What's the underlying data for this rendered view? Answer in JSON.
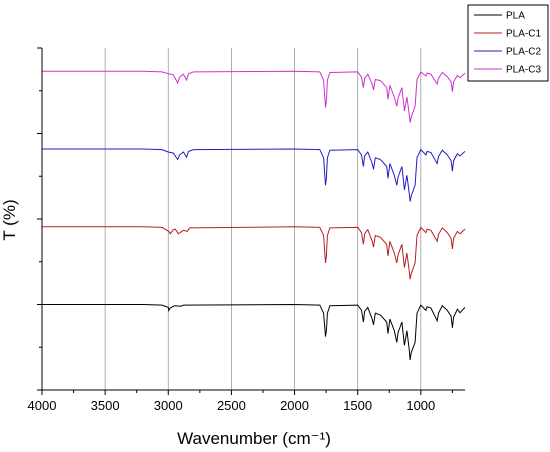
{
  "chart_data": {
    "type": "line",
    "title": "",
    "xlabel": "Wavenumber (cm⁻¹)",
    "ylabel": "T (%)",
    "xlim": [
      4000,
      650
    ],
    "x_reversed": true,
    "x_ticks": [
      "4000",
      "3500",
      "3000",
      "2500",
      "2000",
      "1500",
      "1000"
    ],
    "x_tick_values": [
      4000,
      3500,
      3000,
      2500,
      2000,
      1500,
      1000
    ],
    "ylim": [
      0,
      4.4
    ],
    "y_ticks_shown": false,
    "grid": "vertical",
    "legend_position": "top-right",
    "series": [
      {
        "name": "PLA",
        "color": "#000000",
        "offset": 0.35,
        "points": [
          [
            4000,
            1.0
          ],
          [
            3600,
            1.0
          ],
          [
            3200,
            1.0
          ],
          [
            3050,
            0.99
          ],
          [
            3000,
            0.95
          ],
          [
            2995,
            0.9
          ],
          [
            2985,
            0.94
          ],
          [
            2950,
            0.98
          ],
          [
            2900,
            0.97
          ],
          [
            2880,
            0.99
          ],
          [
            2000,
            1.0
          ],
          [
            1800,
            0.99
          ],
          [
            1770,
            0.85
          ],
          [
            1760,
            0.6
          ],
          [
            1755,
            0.45
          ],
          [
            1748,
            0.55
          ],
          [
            1740,
            0.85
          ],
          [
            1720,
            0.98
          ],
          [
            1500,
            0.99
          ],
          [
            1470,
            0.9
          ],
          [
            1455,
            0.7
          ],
          [
            1445,
            0.88
          ],
          [
            1420,
            0.95
          ],
          [
            1385,
            0.75
          ],
          [
            1375,
            0.65
          ],
          [
            1360,
            0.85
          ],
          [
            1320,
            0.82
          ],
          [
            1270,
            0.7
          ],
          [
            1260,
            0.5
          ],
          [
            1245,
            0.75
          ],
          [
            1210,
            0.55
          ],
          [
            1190,
            0.35
          ],
          [
            1180,
            0.52
          ],
          [
            1150,
            0.7
          ],
          [
            1130,
            0.3
          ],
          [
            1110,
            0.55
          ],
          [
            1090,
            0.2
          ],
          [
            1085,
            0.05
          ],
          [
            1075,
            0.18
          ],
          [
            1045,
            0.35
          ],
          [
            1030,
            0.85
          ],
          [
            1000,
            0.99
          ],
          [
            960,
            0.9
          ],
          [
            950,
            0.96
          ],
          [
            920,
            0.94
          ],
          [
            870,
            0.72
          ],
          [
            860,
            0.85
          ],
          [
            830,
            0.98
          ],
          [
            790,
            0.9
          ],
          [
            760,
            0.8
          ],
          [
            750,
            0.6
          ],
          [
            740,
            0.78
          ],
          [
            710,
            0.92
          ],
          [
            690,
            0.86
          ],
          [
            650,
            0.95
          ]
        ]
      },
      {
        "name": "PLA-C1",
        "color": "#b22222",
        "offset": 1.35,
        "points": [
          [
            4000,
            1.0
          ],
          [
            3600,
            1.0
          ],
          [
            3200,
            1.0
          ],
          [
            3050,
            0.99
          ],
          [
            2995,
            0.92
          ],
          [
            2985,
            0.88
          ],
          [
            2960,
            0.95
          ],
          [
            2945,
            0.96
          ],
          [
            2920,
            0.88
          ],
          [
            2880,
            0.94
          ],
          [
            2850,
            0.92
          ],
          [
            2830,
            0.98
          ],
          [
            2000,
            1.0
          ],
          [
            1800,
            0.99
          ],
          [
            1770,
            0.85
          ],
          [
            1760,
            0.55
          ],
          [
            1755,
            0.38
          ],
          [
            1748,
            0.5
          ],
          [
            1740,
            0.85
          ],
          [
            1720,
            0.98
          ],
          [
            1500,
            0.99
          ],
          [
            1470,
            0.9
          ],
          [
            1455,
            0.7
          ],
          [
            1445,
            0.88
          ],
          [
            1420,
            0.95
          ],
          [
            1385,
            0.75
          ],
          [
            1375,
            0.65
          ],
          [
            1360,
            0.85
          ],
          [
            1320,
            0.82
          ],
          [
            1270,
            0.7
          ],
          [
            1260,
            0.5
          ],
          [
            1245,
            0.75
          ],
          [
            1210,
            0.55
          ],
          [
            1190,
            0.38
          ],
          [
            1180,
            0.52
          ],
          [
            1150,
            0.7
          ],
          [
            1130,
            0.3
          ],
          [
            1110,
            0.55
          ],
          [
            1090,
            0.22
          ],
          [
            1085,
            0.1
          ],
          [
            1075,
            0.2
          ],
          [
            1045,
            0.38
          ],
          [
            1030,
            0.85
          ],
          [
            1000,
            0.99
          ],
          [
            960,
            0.9
          ],
          [
            950,
            0.96
          ],
          [
            920,
            0.94
          ],
          [
            870,
            0.75
          ],
          [
            860,
            0.87
          ],
          [
            830,
            0.98
          ],
          [
            790,
            0.9
          ],
          [
            760,
            0.8
          ],
          [
            750,
            0.62
          ],
          [
            740,
            0.8
          ],
          [
            710,
            0.92
          ],
          [
            690,
            0.88
          ],
          [
            650,
            0.96
          ]
        ]
      },
      {
        "name": "PLA-C2",
        "color": "#1f1fbf",
        "offset": 2.35,
        "points": [
          [
            4000,
            1.0
          ],
          [
            3600,
            1.0
          ],
          [
            3200,
            1.0
          ],
          [
            3050,
            0.99
          ],
          [
            3000,
            0.95
          ],
          [
            2960,
            0.93
          ],
          [
            2925,
            0.82
          ],
          [
            2910,
            0.9
          ],
          [
            2880,
            0.95
          ],
          [
            2855,
            0.86
          ],
          [
            2840,
            0.96
          ],
          [
            2800,
            0.99
          ],
          [
            2000,
            1.0
          ],
          [
            1800,
            0.99
          ],
          [
            1770,
            0.85
          ],
          [
            1760,
            0.55
          ],
          [
            1755,
            0.38
          ],
          [
            1748,
            0.5
          ],
          [
            1740,
            0.85
          ],
          [
            1720,
            0.98
          ],
          [
            1500,
            0.99
          ],
          [
            1470,
            0.9
          ],
          [
            1455,
            0.7
          ],
          [
            1445,
            0.88
          ],
          [
            1420,
            0.95
          ],
          [
            1385,
            0.75
          ],
          [
            1375,
            0.65
          ],
          [
            1360,
            0.85
          ],
          [
            1320,
            0.82
          ],
          [
            1270,
            0.7
          ],
          [
            1260,
            0.5
          ],
          [
            1245,
            0.75
          ],
          [
            1210,
            0.55
          ],
          [
            1190,
            0.38
          ],
          [
            1180,
            0.52
          ],
          [
            1150,
            0.7
          ],
          [
            1130,
            0.3
          ],
          [
            1110,
            0.55
          ],
          [
            1090,
            0.22
          ],
          [
            1085,
            0.1
          ],
          [
            1075,
            0.2
          ],
          [
            1045,
            0.38
          ],
          [
            1030,
            0.85
          ],
          [
            1000,
            0.99
          ],
          [
            960,
            0.9
          ],
          [
            950,
            0.96
          ],
          [
            920,
            0.94
          ],
          [
            870,
            0.75
          ],
          [
            860,
            0.87
          ],
          [
            830,
            0.98
          ],
          [
            790,
            0.9
          ],
          [
            760,
            0.8
          ],
          [
            750,
            0.62
          ],
          [
            740,
            0.8
          ],
          [
            710,
            0.92
          ],
          [
            690,
            0.88
          ],
          [
            650,
            0.96
          ]
        ]
      },
      {
        "name": "PLA-C3",
        "color": "#cc33cc",
        "offset": 3.35,
        "points": [
          [
            4000,
            1.0
          ],
          [
            3600,
            1.0
          ],
          [
            3200,
            1.0
          ],
          [
            3050,
            0.99
          ],
          [
            3000,
            0.96
          ],
          [
            2960,
            0.94
          ],
          [
            2925,
            0.8
          ],
          [
            2910,
            0.9
          ],
          [
            2880,
            0.95
          ],
          [
            2855,
            0.85
          ],
          [
            2840,
            0.96
          ],
          [
            2800,
            0.99
          ],
          [
            2000,
            1.0
          ],
          [
            1800,
            0.99
          ],
          [
            1770,
            0.85
          ],
          [
            1760,
            0.55
          ],
          [
            1755,
            0.38
          ],
          [
            1748,
            0.5
          ],
          [
            1740,
            0.85
          ],
          [
            1720,
            0.98
          ],
          [
            1500,
            0.99
          ],
          [
            1470,
            0.9
          ],
          [
            1455,
            0.72
          ],
          [
            1445,
            0.88
          ],
          [
            1420,
            0.95
          ],
          [
            1385,
            0.78
          ],
          [
            1375,
            0.68
          ],
          [
            1360,
            0.86
          ],
          [
            1320,
            0.84
          ],
          [
            1270,
            0.72
          ],
          [
            1260,
            0.52
          ],
          [
            1245,
            0.76
          ],
          [
            1210,
            0.56
          ],
          [
            1190,
            0.4
          ],
          [
            1180,
            0.54
          ],
          [
            1150,
            0.72
          ],
          [
            1130,
            0.32
          ],
          [
            1110,
            0.56
          ],
          [
            1090,
            0.24
          ],
          [
            1085,
            0.12
          ],
          [
            1075,
            0.22
          ],
          [
            1045,
            0.4
          ],
          [
            1030,
            0.86
          ],
          [
            1000,
            0.99
          ],
          [
            960,
            0.92
          ],
          [
            950,
            0.97
          ],
          [
            920,
            0.95
          ],
          [
            870,
            0.78
          ],
          [
            860,
            0.88
          ],
          [
            830,
            0.98
          ],
          [
            790,
            0.91
          ],
          [
            760,
            0.82
          ],
          [
            750,
            0.65
          ],
          [
            740,
            0.82
          ],
          [
            710,
            0.93
          ],
          [
            690,
            0.89
          ],
          [
            650,
            0.97
          ]
        ]
      }
    ]
  }
}
